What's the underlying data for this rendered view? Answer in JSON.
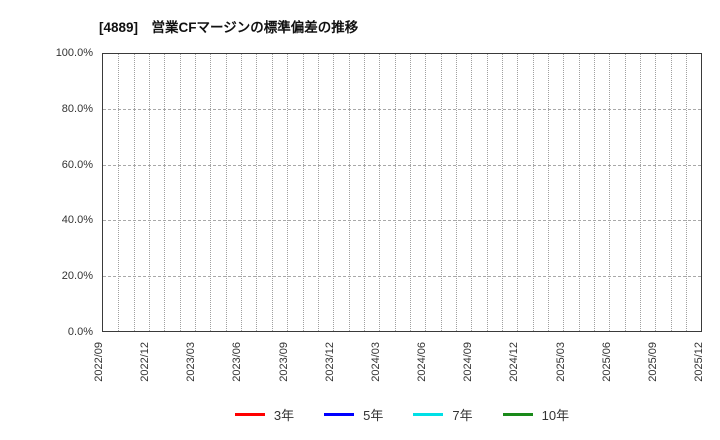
{
  "page": {
    "background": "#ffffff"
  },
  "chart_data": {
    "type": "line",
    "title": "[4889]　営業CFマージンの標準偏差の推移",
    "xlabel": "",
    "ylabel": "",
    "ylim": [
      0,
      100
    ],
    "y_tick_labels": [
      "0.0%",
      "20.0%",
      "40.0%",
      "60.0%",
      "80.0%",
      "100.0%"
    ],
    "y_tick_values": [
      0,
      20,
      40,
      60,
      80,
      100
    ],
    "x_tick_labels": [
      "2022/09",
      "2022/12",
      "2023/03",
      "2023/06",
      "2023/09",
      "2023/12",
      "2024/03",
      "2024/06",
      "2024/09",
      "2024/12",
      "2025/03",
      "2025/06",
      "2025/09",
      "2025/12"
    ],
    "x_label_step_months": 3,
    "x_total_month_positions": 40,
    "grid": true,
    "grid_vertical_style": "dotted-monthly",
    "grid_horizontal_style": "dashed",
    "legend_position": "bottom",
    "no_data_rendered": true,
    "series": [
      {
        "name": "3年",
        "color": "#ff0000",
        "values": []
      },
      {
        "name": "5年",
        "color": "#0000ff",
        "values": []
      },
      {
        "name": "7年",
        "color": "#00e0e6",
        "values": []
      },
      {
        "name": "10年",
        "color": "#1a8a1a",
        "values": []
      }
    ]
  }
}
